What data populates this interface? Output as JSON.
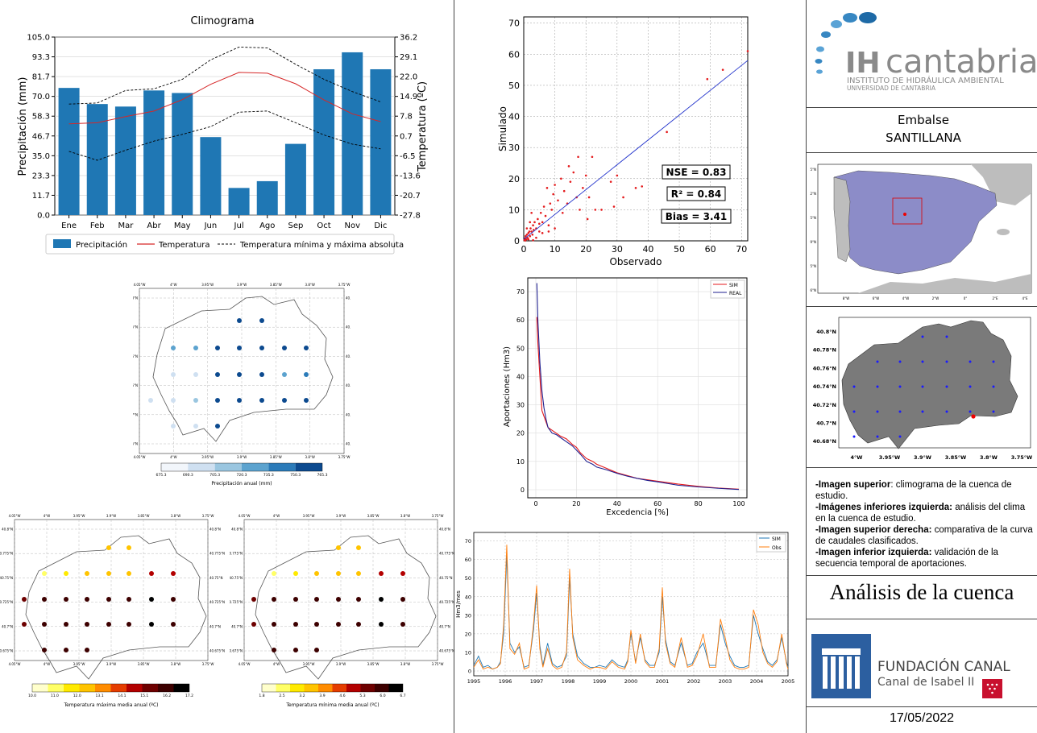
{
  "climogram": {
    "title": "Climograma",
    "ylabel_left": "Precipitación (mm)",
    "ylabel_right": "Temperatura (ºC)",
    "left_ticks": [
      "105.0",
      "93.3",
      "81.7",
      "70.0",
      "58.3",
      "46.7",
      "35.0",
      "23.3",
      "11.7",
      "0.0"
    ],
    "right_ticks": [
      "36.2",
      "29.1",
      "22.0",
      "14.9",
      "7.8",
      "0.7",
      "-6.5",
      "-13.6",
      "-20.7",
      "-27.8"
    ],
    "legend": {
      "precip": "Precipitación",
      "temp": "Temperatura",
      "minmax": "Temperatura mínima y máxima absoluta"
    }
  },
  "scatter": {
    "xlabel": "Observado",
    "ylabel": "Simulado",
    "x_ticks": [
      "0",
      "10",
      "20",
      "30",
      "40",
      "50",
      "60",
      "70"
    ],
    "y_ticks": [
      "0",
      "10",
      "20",
      "30",
      "40",
      "50",
      "60",
      "70"
    ],
    "nse": "NSE = 0.83",
    "r2": "R² = 0.84",
    "bias": "Bias = 3.41"
  },
  "fdc": {
    "xlabel": "Excedencia [%]",
    "ylabel": "Aportaciones (Hm3)",
    "x_ticks": [
      "0",
      "20",
      "40",
      "60",
      "80",
      "100"
    ],
    "y_ticks": [
      "0",
      "10",
      "20",
      "30",
      "40",
      "50",
      "60",
      "70"
    ],
    "legend_sim": "SIM",
    "legend_real": "REAL"
  },
  "timeseries": {
    "ylabel": "Hm3/mes",
    "x_ticks": [
      "1995",
      "1996",
      "1997",
      "1998",
      "1999",
      "2000",
      "2001",
      "2002",
      "2003",
      "2004",
      "2005"
    ],
    "y_ticks": [
      "0",
      "10",
      "20",
      "30",
      "40",
      "50",
      "60",
      "70"
    ],
    "legend_sim": "SIM",
    "legend_obs": "Obs"
  },
  "precip_map": {
    "colorbar_label": "Precipitación anual (mm)",
    "colorbar_ticks": [
      "675.3",
      "690.3",
      "705.3",
      "720.3",
      "735.3",
      "750.3",
      "765.3"
    ],
    "lon_ticks": [
      "4.05°W",
      "4°W",
      "3.95°W",
      "3.9°W",
      "3.85°W",
      "3.8°W",
      "3.75°W"
    ],
    "lat_ticks": [
      "40.8°N",
      "40.775°N",
      "40.75°N",
      "40.725°N",
      "40.7°N",
      "40.675°N"
    ]
  },
  "tmax_map": {
    "colorbar_label": "Temperatura máxima media anual (ºC)",
    "colorbar_ticks": [
      "10.0",
      "11.0",
      "12.0",
      "13.1",
      "14.1",
      "15.1",
      "16.2",
      "17.2"
    ],
    "lon_ticks": [
      "4.05°W",
      "4°W",
      "3.95°W",
      "3.9°W",
      "3.85°W",
      "3.8°W",
      "3.75°W"
    ],
    "lat_ticks": [
      "40.8°N",
      "40.775°N",
      "40.75°N",
      "40.725°N",
      "40.7°N",
      "40.675°N"
    ]
  },
  "tmin_map": {
    "colorbar_label": "Temperatura mínima media anual (ºC)",
    "colorbar_ticks": [
      "1.8",
      "2.5",
      "3.2",
      "3.9",
      "4.6",
      "5.3",
      "6.0",
      "6.7"
    ],
    "lon_ticks": [
      "4.05°W",
      "4°W",
      "3.95°W",
      "3.9°W",
      "3.85°W",
      "3.8°W",
      "3.75°W"
    ],
    "lat_ticks": [
      "40.8°N",
      "40.775°N",
      "40.75°N",
      "40.725°N",
      "40.7°N",
      "40.675°N"
    ]
  },
  "iberia_map": {
    "lon_ticks": [
      "8°W",
      "6°W",
      "4°W",
      "2°W",
      "0°",
      "2°E",
      "4°E"
    ],
    "lat_ticks": [
      "43.5°N",
      "42°N",
      "40.5°N",
      "39°N",
      "37.5°N",
      "36°N"
    ]
  },
  "basin_map": {
    "lon_ticks": [
      "4°W",
      "3.95°W",
      "3.9°W",
      "3.85°W",
      "3.8°W",
      "3.75°W"
    ],
    "lat_ticks": [
      "40.8°N",
      "40.78°N",
      "40.76°N",
      "40.74°N",
      "40.72°N",
      "40.7°N",
      "40.68°N"
    ]
  },
  "sidebar": {
    "logo_main": "IH",
    "logo_word": "cantabria",
    "logo_sub1": "INSTITUTO DE HIDRÁULICA AMBIENTAL",
    "logo_sub2": "UNIVERSIDAD DE CANTABRIA",
    "embalse_label": "Embalse",
    "embalse_name": "SANTILLANA",
    "desc": [
      {
        "bold": "-Imagen superior",
        "text": ": climograma de la cuenca de estudio."
      },
      {
        "bold": "-Imágenes inferiores izquierda:",
        "text": " análisis del clima en la cuenca de estudio."
      },
      {
        "bold": "-Imagen superior derecha:",
        "text": " comparativa de la curva de caudales clasificados."
      },
      {
        "bold": "-Imagen inferior izquierda:",
        "text": " validación de la secuencia temporal de aportaciones."
      }
    ],
    "section_title": "Análisis de la cuenca",
    "fundacion_line1": "FUNDACIÓN CANAL",
    "fundacion_line2": "Canal de Isabel II",
    "date": "17/05/2022"
  },
  "chart_data": [
    {
      "type": "bar",
      "title": "Climograma",
      "categories": [
        "Ene",
        "Feb",
        "Mar",
        "Abr",
        "May",
        "Jun",
        "Jul",
        "Ago",
        "Sep",
        "Oct",
        "Nov",
        "Dic"
      ],
      "series": [
        {
          "name": "Precipitación",
          "values": [
            75,
            65.5,
            64,
            73.5,
            72,
            46,
            16,
            20,
            42,
            86,
            96,
            86
          ]
        },
        {
          "name": "Temperatura",
          "values": [
            5.0,
            5.4,
            7.6,
            9.6,
            13.7,
            19.2,
            23.5,
            23.2,
            19.4,
            13.6,
            8.6,
            5.8
          ]
        },
        {
          "name": "Temperatura mínima y máxima absoluta",
          "values_max": [
            12.1,
            12.5,
            17.0,
            17.6,
            21.0,
            28.0,
            32.6,
            32.3,
            26.4,
            21.0,
            16.6,
            12.9
          ],
          "values_min": [
            -4.9,
            -8.1,
            -4.5,
            -1.2,
            1.2,
            4.0,
            9.2,
            9.6,
            5.4,
            1.0,
            -2.3,
            -4.0
          ]
        }
      ],
      "ylim": [
        0,
        105
      ],
      "ylim_right": [
        -27.8,
        36.2
      ],
      "xlabel": "",
      "ylabel": "Precipitación (mm)",
      "ylabel_right": "Temperatura (ºC)",
      "colors": {
        "bars": "#1f77b4",
        "temp": "#d62728",
        "minmax": "#000000"
      },
      "legend_position": "bottom"
    },
    {
      "type": "scatter",
      "xlabel": "Observado",
      "ylabel": "Simulado",
      "xlim": [
        0,
        72
      ],
      "ylim": [
        0,
        72
      ],
      "fit_line": {
        "x": [
          0,
          72
        ],
        "y": [
          0.5,
          58
        ]
      },
      "points": [
        [
          0.2,
          0.3
        ],
        [
          0.4,
          0.8
        ],
        [
          0.6,
          1.5
        ],
        [
          0.8,
          0.5
        ],
        [
          1,
          2
        ],
        [
          1.2,
          1
        ],
        [
          1.5,
          2.5
        ],
        [
          1.8,
          3
        ],
        [
          2,
          1.5
        ],
        [
          2.2,
          4
        ],
        [
          2.5,
          3
        ],
        [
          2.8,
          2
        ],
        [
          3,
          5
        ],
        [
          3.2,
          3.5
        ],
        [
          3.5,
          6
        ],
        [
          4,
          4
        ],
        [
          4.5,
          7
        ],
        [
          5,
          5.5
        ],
        [
          5.5,
          9
        ],
        [
          6,
          6
        ],
        [
          6.5,
          11
        ],
        [
          7,
          8
        ],
        [
          7.5,
          17
        ],
        [
          8,
          5
        ],
        [
          8.5,
          12
        ],
        [
          9,
          10
        ],
        [
          9.5,
          15
        ],
        [
          10,
          18
        ],
        [
          11,
          13
        ],
        [
          12,
          20
        ],
        [
          12.5,
          9
        ],
        [
          13,
          16
        ],
        [
          14,
          12
        ],
        [
          14.5,
          24
        ],
        [
          15,
          19
        ],
        [
          16,
          22
        ],
        [
          17,
          14
        ],
        [
          17.5,
          27
        ],
        [
          18,
          10
        ],
        [
          19,
          17
        ],
        [
          20,
          21
        ],
        [
          20.5,
          7
        ],
        [
          21,
          14
        ],
        [
          22,
          27
        ],
        [
          23,
          10
        ],
        [
          25,
          10
        ],
        [
          28,
          19
        ],
        [
          29,
          11
        ],
        [
          30,
          21
        ],
        [
          32,
          14
        ],
        [
          36,
          17
        ],
        [
          38,
          17.5
        ],
        [
          46,
          35
        ],
        [
          59,
          52
        ],
        [
          64,
          55
        ],
        [
          72,
          61
        ],
        [
          3,
          0.2
        ],
        [
          1,
          4
        ],
        [
          2,
          6
        ],
        [
          4,
          1
        ],
        [
          5,
          3
        ],
        [
          6,
          2.5
        ],
        [
          8,
          3
        ],
        [
          10,
          4
        ],
        [
          2.5,
          9
        ],
        [
          0.5,
          0.1
        ],
        [
          1.5,
          0.5
        ]
      ],
      "annotations": [
        "NSE = 0.83",
        "R² = 0.84",
        "Bias = 3.41"
      ]
    },
    {
      "type": "line",
      "xlabel": "Excedencia [%]",
      "ylabel": "Aportaciones (Hm3)",
      "xlim": [
        0,
        100
      ],
      "ylim": [
        0,
        72
      ],
      "series": [
        {
          "name": "SIM",
          "x": [
            0.5,
            1,
            2,
            3,
            4,
            5,
            6,
            8,
            10,
            12,
            15,
            18,
            20,
            22,
            25,
            28,
            30,
            35,
            40,
            45,
            50,
            55,
            60,
            70,
            80,
            90,
            100
          ],
          "y": [
            61,
            52,
            40,
            28,
            26,
            24,
            22,
            21,
            20,
            19,
            18,
            16,
            15,
            13,
            11,
            10,
            9,
            7.5,
            6,
            5,
            4,
            3.5,
            3,
            2,
            1.2,
            0.6,
            0.2
          ]
        },
        {
          "name": "REAL",
          "x": [
            0.5,
            1,
            2,
            3,
            4,
            5,
            6,
            8,
            10,
            12,
            15,
            18,
            20,
            22,
            25,
            28,
            30,
            35,
            40,
            45,
            50,
            55,
            60,
            70,
            80,
            90,
            100
          ],
          "y": [
            73,
            60,
            45,
            35,
            29,
            25,
            22,
            20,
            19.5,
            18.5,
            17,
            15.5,
            14,
            12.5,
            10,
            9,
            8,
            7,
            5.8,
            4.8,
            4,
            3.3,
            2.8,
            1.6,
            1,
            0.5,
            0.1
          ]
        }
      ],
      "colors": {
        "SIM": "#e41a1c",
        "REAL": "#1f1f8f"
      }
    },
    {
      "type": "line",
      "ylabel": "Hm3/mes",
      "xlim": [
        1995,
        2005
      ],
      "ylim": [
        0,
        72
      ],
      "series": [
        {
          "name": "SIM",
          "x": [
            1995,
            1995.15,
            1995.3,
            1995.45,
            1995.6,
            1995.75,
            1995.85,
            1995.95,
            1996.05,
            1996.15,
            1996.3,
            1996.45,
            1996.6,
            1996.75,
            1996.9,
            1997.0,
            1997.1,
            1997.2,
            1997.35,
            1997.5,
            1997.65,
            1997.8,
            1997.95,
            1998.05,
            1998.15,
            1998.3,
            1998.5,
            1998.7,
            1998.85,
            1999.0,
            1999.2,
            1999.4,
            1999.6,
            1999.8,
            1999.9,
            2000.0,
            2000.15,
            2000.3,
            2000.45,
            2000.6,
            2000.75,
            2000.9,
            2001.0,
            2001.1,
            2001.25,
            2001.4,
            2001.6,
            2001.8,
            2001.95,
            2002.1,
            2002.3,
            2002.5,
            2002.7,
            2002.85,
            2003.0,
            2003.15,
            2003.3,
            2003.45,
            2003.6,
            2003.75,
            2003.9,
            2004.05,
            2004.2,
            2004.35,
            2004.5,
            2004.65,
            2004.8,
            2004.95,
            2005
          ],
          "y": [
            3,
            8,
            2,
            3,
            1,
            2,
            5,
            20,
            62,
            15,
            10,
            13,
            2,
            3,
            22,
            42,
            14,
            3,
            15,
            4,
            2,
            3,
            8,
            50,
            20,
            8,
            4,
            2,
            2,
            3,
            2,
            6,
            3,
            2,
            6,
            20,
            5,
            18,
            6,
            3,
            3,
            10,
            40,
            17,
            5,
            3,
            15,
            3,
            4,
            10,
            15,
            3,
            3,
            25,
            15,
            8,
            3,
            2,
            2,
            3,
            30,
            20,
            12,
            5,
            3,
            6,
            18,
            5,
            2
          ]
        },
        {
          "name": "Obs",
          "x": [
            1995,
            1995.15,
            1995.3,
            1995.45,
            1995.6,
            1995.75,
            1995.85,
            1995.95,
            1996.05,
            1996.15,
            1996.3,
            1996.45,
            1996.6,
            1996.75,
            1996.9,
            1997.0,
            1997.1,
            1997.2,
            1997.35,
            1997.5,
            1997.65,
            1997.8,
            1997.95,
            1998.05,
            1998.15,
            1998.3,
            1998.5,
            1998.7,
            1998.85,
            1999.0,
            1999.2,
            1999.4,
            1999.6,
            1999.8,
            1999.9,
            2000.0,
            2000.15,
            2000.3,
            2000.45,
            2000.6,
            2000.75,
            2000.9,
            2001.0,
            2001.1,
            2001.25,
            2001.4,
            2001.6,
            2001.8,
            2001.95,
            2002.1,
            2002.3,
            2002.5,
            2002.7,
            2002.85,
            2003.0,
            2003.15,
            2003.3,
            2003.45,
            2003.6,
            2003.75,
            2003.9,
            2004.05,
            2004.2,
            2004.35,
            2004.5,
            2004.65,
            2004.8,
            2004.95,
            2005
          ],
          "y": [
            2,
            6,
            1,
            2,
            1,
            2,
            4,
            25,
            68,
            12,
            9,
            15,
            1,
            2,
            25,
            46,
            12,
            2,
            12,
            3,
            1,
            2,
            10,
            55,
            18,
            6,
            3,
            1,
            2,
            2,
            1,
            5,
            2,
            1,
            5,
            22,
            4,
            20,
            5,
            2,
            2,
            12,
            45,
            15,
            4,
            2,
            18,
            2,
            3,
            8,
            20,
            2,
            2,
            28,
            18,
            6,
            2,
            1,
            1,
            2,
            33,
            25,
            10,
            4,
            2,
            5,
            20,
            4,
            1
          ]
        }
      ],
      "colors": {
        "SIM": "#1f77b4",
        "Obs": "#ff7f0e"
      }
    },
    {
      "type": "heatmap",
      "colorbar_label": "Precipitación anual (mm)",
      "values_range": [
        675.3,
        765.3
      ]
    },
    {
      "type": "heatmap",
      "colorbar_label": "Temperatura máxima media anual (ºC)",
      "values_range": [
        10.0,
        17.2
      ]
    },
    {
      "type": "heatmap",
      "colorbar_label": "Temperatura mínima media anual (ºC)",
      "values_range": [
        1.8,
        6.7
      ]
    }
  ]
}
